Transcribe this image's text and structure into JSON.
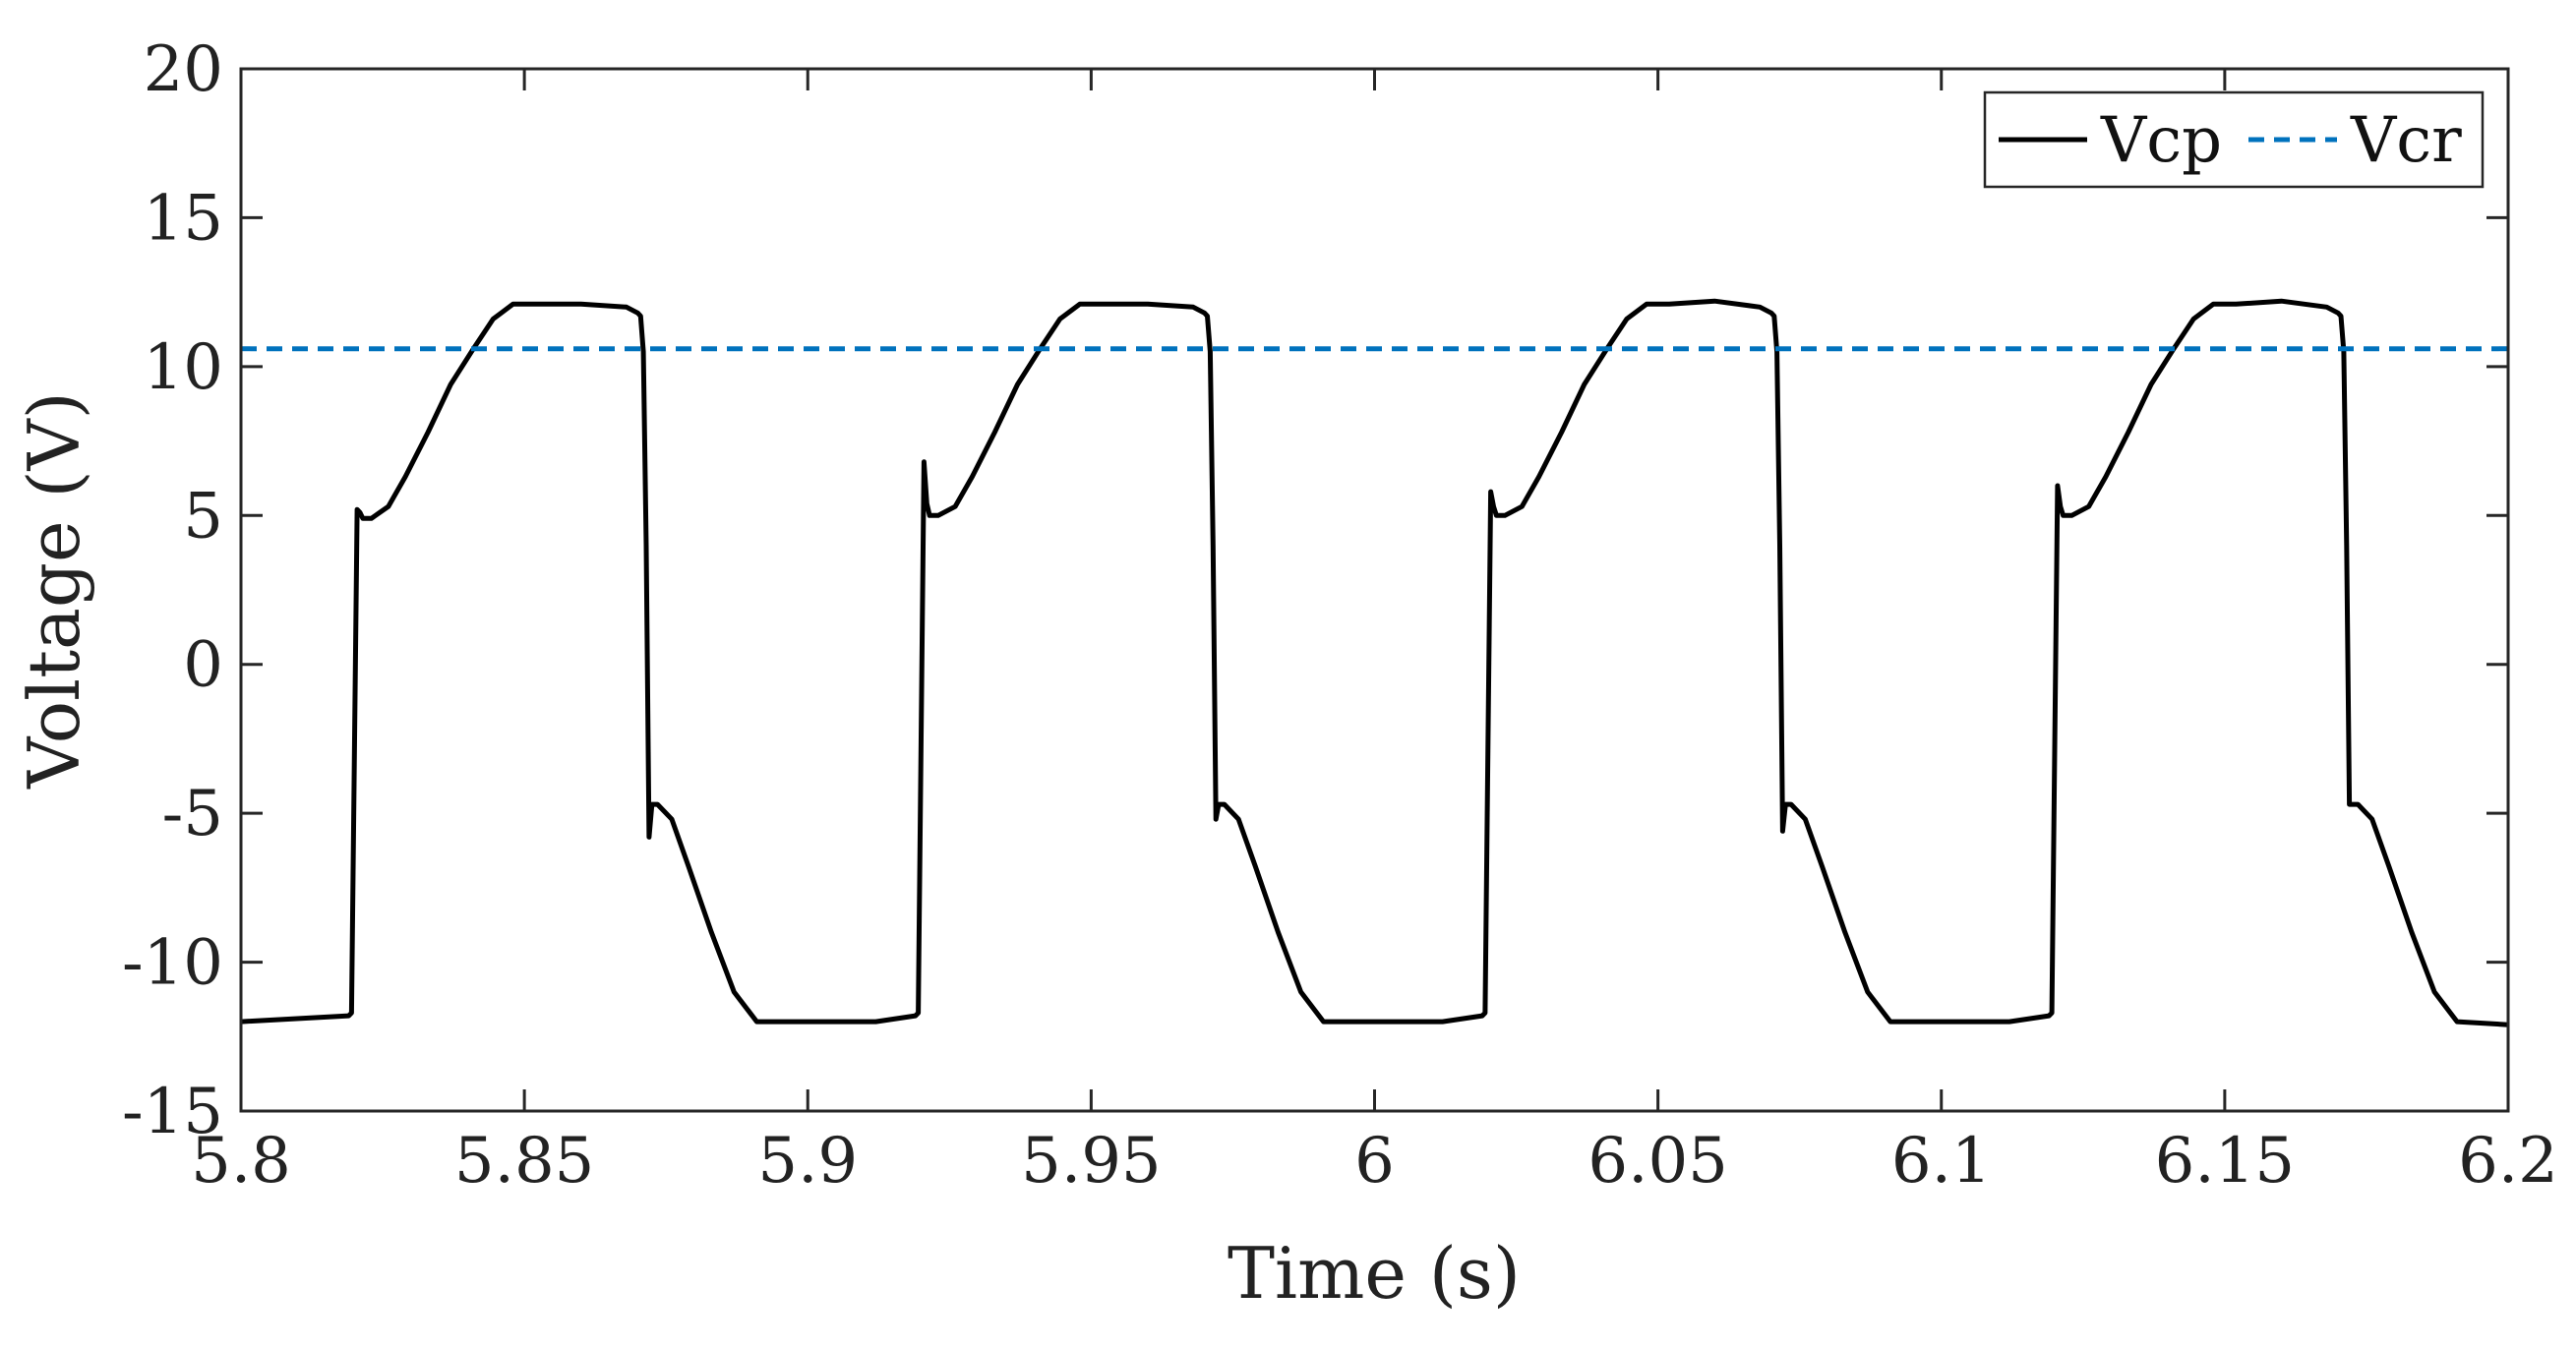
{
  "chart_data": {
    "type": "line",
    "title": "",
    "xlabel": "Time (s)",
    "ylabel": "Voltage (V)",
    "xlim": [
      5.8,
      6.2
    ],
    "ylim": [
      -15,
      20
    ],
    "xticks": [
      5.8,
      5.85,
      5.9,
      5.95,
      6.0,
      6.05,
      6.1,
      6.15,
      6.2
    ],
    "xtick_labels": [
      "5.8",
      "5.85",
      "5.9",
      "5.95",
      "6",
      "6.05",
      "6.1",
      "6.15",
      "6.2"
    ],
    "yticks": [
      -15,
      -10,
      -5,
      0,
      5,
      10,
      15,
      20
    ],
    "ytick_labels": [
      "-15",
      "-10",
      "-5",
      "0",
      "5",
      "10",
      "15",
      "20"
    ],
    "grid": false,
    "legend_position": "top-right",
    "series": [
      {
        "name": "Vcp",
        "color": "#000000",
        "style": "solid",
        "x": [
          5.8,
          5.819,
          5.8195,
          5.8205,
          5.821,
          5.8215,
          5.823,
          5.826,
          5.829,
          5.833,
          5.837,
          5.841,
          5.8445,
          5.848,
          5.852,
          5.86,
          5.868,
          5.87,
          5.8705,
          5.871,
          5.8715,
          5.872,
          5.8725,
          5.8735,
          5.876,
          5.879,
          5.883,
          5.887,
          5.891,
          5.9,
          5.912,
          5.919,
          5.9195,
          5.9205,
          5.921,
          5.9215,
          5.923,
          5.926,
          5.929,
          5.933,
          5.937,
          5.941,
          5.9445,
          5.948,
          5.952,
          5.96,
          5.968,
          5.97,
          5.9705,
          5.971,
          5.9715,
          5.972,
          5.9725,
          5.9735,
          5.976,
          5.979,
          5.983,
          5.987,
          5.991,
          6.0,
          6.012,
          6.019,
          6.0195,
          6.0205,
          6.021,
          6.0215,
          6.023,
          6.026,
          6.029,
          6.033,
          6.037,
          6.041,
          6.0445,
          6.048,
          6.052,
          6.06,
          6.068,
          6.07,
          6.0705,
          6.071,
          6.0715,
          6.072,
          6.0725,
          6.0735,
          6.076,
          6.079,
          6.083,
          6.087,
          6.091,
          6.1,
          6.112,
          6.119,
          6.1195,
          6.1205,
          6.121,
          6.1215,
          6.123,
          6.126,
          6.129,
          6.133,
          6.137,
          6.141,
          6.1445,
          6.148,
          6.152,
          6.16,
          6.168,
          6.17,
          6.1705,
          6.171,
          6.1715,
          6.172,
          6.1725,
          6.1735,
          6.176,
          6.179,
          6.183,
          6.187,
          6.191,
          6.2
        ],
        "y": [
          -12.0,
          -11.8,
          -11.7,
          5.2,
          5.1,
          4.9,
          4.9,
          5.3,
          6.3,
          7.8,
          9.4,
          10.6,
          11.6,
          12.1,
          12.1,
          12.1,
          12.0,
          11.8,
          11.7,
          10.5,
          4.0,
          -5.8,
          -4.7,
          -4.7,
          -5.2,
          -6.8,
          -9.0,
          -11.0,
          -12.0,
          -12.0,
          -12.0,
          -11.8,
          -11.7,
          6.8,
          5.4,
          5.0,
          5.0,
          5.3,
          6.3,
          7.8,
          9.4,
          10.6,
          11.6,
          12.1,
          12.1,
          12.1,
          12.0,
          11.8,
          11.7,
          10.5,
          4.0,
          -5.2,
          -4.7,
          -4.7,
          -5.2,
          -6.8,
          -9.0,
          -11.0,
          -12.0,
          -12.0,
          -12.0,
          -11.8,
          -11.7,
          5.8,
          5.3,
          5.0,
          5.0,
          5.3,
          6.3,
          7.8,
          9.4,
          10.6,
          11.6,
          12.1,
          12.1,
          12.2,
          12.0,
          11.8,
          11.7,
          10.5,
          4.0,
          -5.6,
          -4.7,
          -4.7,
          -5.2,
          -6.8,
          -9.0,
          -11.0,
          -12.0,
          -12.0,
          -12.0,
          -11.8,
          -11.7,
          6.0,
          5.3,
          5.0,
          5.0,
          5.3,
          6.3,
          7.8,
          9.4,
          10.6,
          11.6,
          12.1,
          12.1,
          12.2,
          12.0,
          11.8,
          11.7,
          10.5,
          4.0,
          -4.7,
          -4.7,
          -4.7,
          -5.2,
          -6.8,
          -9.0,
          -11.0,
          -12.0,
          -12.1
        ]
      },
      {
        "name": "Vcr",
        "color": "#0072BD",
        "style": "dashed",
        "x": [
          5.8,
          6.2
        ],
        "y": [
          10.6,
          10.6
        ]
      }
    ]
  }
}
